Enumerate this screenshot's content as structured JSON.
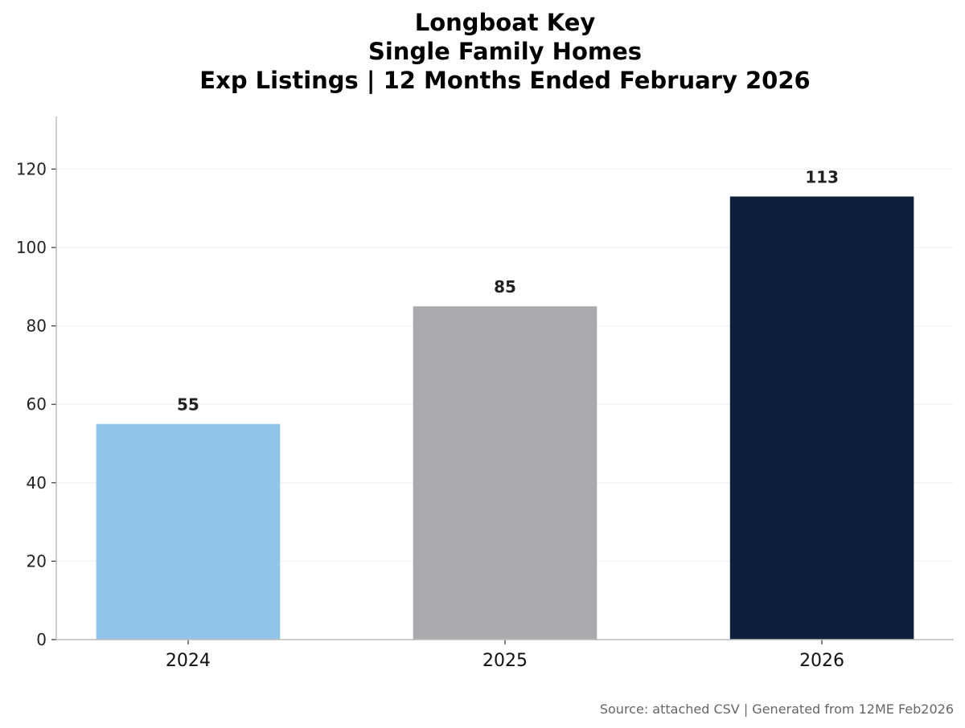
{
  "chart_data": {
    "type": "bar",
    "title": [
      "Longboat Key",
      "Single Family Homes",
      "Exp Listings | 12 Months Ended February 2026"
    ],
    "categories": [
      "2024",
      "2025",
      "2026"
    ],
    "values": [
      55,
      85,
      113
    ],
    "data_labels": [
      "55",
      "85",
      "113"
    ],
    "colors": [
      "#8fc5e6",
      "#a9aaad",
      "#0c1f3b"
    ],
    "xlabel": "",
    "ylabel": "",
    "ylim": [
      0,
      133.4
    ],
    "yticks": [
      0,
      20,
      40,
      60,
      80,
      100,
      120
    ],
    "grid": "horizontal",
    "footer": "Source: attached CSV | Generated from 12ME Feb2026"
  }
}
